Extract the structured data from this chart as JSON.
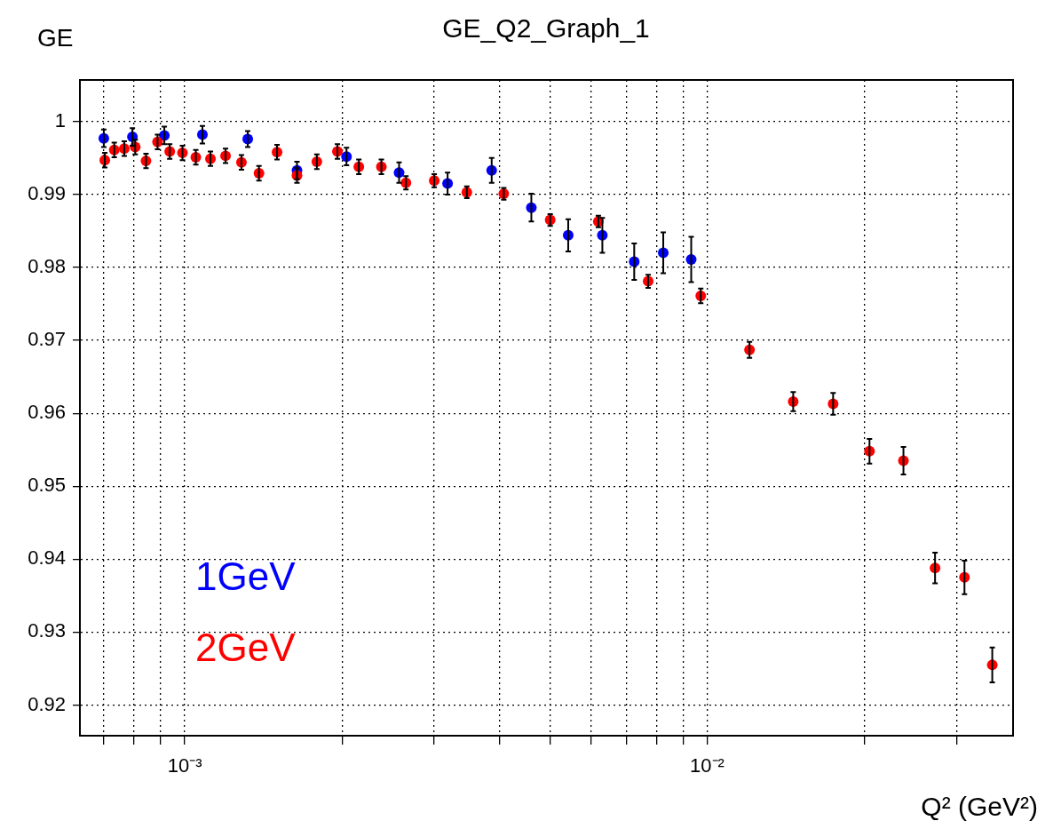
{
  "chart_data": {
    "type": "scatter",
    "title": "GE_Q2_Graph_1",
    "ylabel": "GE",
    "xlabel": "Q² (GeV²)",
    "log": "x",
    "grid": true,
    "legend": false,
    "marker": "circle",
    "xlim": [
      0.00063,
      0.0385
    ],
    "xticks": [
      {
        "value": 0.0007,
        "label": null
      },
      {
        "value": 0.0008,
        "label": null
      },
      {
        "value": 0.0009,
        "label": null
      },
      {
        "value": 0.001,
        "label": "10⁻³"
      },
      {
        "value": 0.002,
        "label": null
      },
      {
        "value": 0.003,
        "label": null
      },
      {
        "value": 0.004,
        "label": null
      },
      {
        "value": 0.005,
        "label": null
      },
      {
        "value": 0.006,
        "label": null
      },
      {
        "value": 0.007,
        "label": null
      },
      {
        "value": 0.008,
        "label": null
      },
      {
        "value": 0.009,
        "label": null
      },
      {
        "value": 0.01,
        "label": "10⁻²"
      },
      {
        "value": 0.02,
        "label": null
      },
      {
        "value": 0.03,
        "label": null
      }
    ],
    "ylim": [
      0.9158,
      1.0057
    ],
    "yticks": [
      0.92,
      0.93,
      0.94,
      0.95,
      0.96,
      0.97,
      0.98,
      0.99,
      1
    ],
    "series": [
      {
        "name": "1GeV",
        "color": "#0000ff",
        "x": [
          0.0007,
          0.000794,
          0.000914,
          0.001081,
          0.00132,
          0.00164,
          0.00204,
          0.002572,
          0.003185,
          0.003868,
          0.004607,
          0.00542,
          0.0063,
          0.00725,
          0.00824,
          0.00932
        ],
        "values": [
          0.9977,
          0.9979,
          0.9981,
          0.9982,
          0.9976,
          0.9933,
          0.9952,
          0.993,
          0.9915,
          0.9933,
          0.9882,
          0.9844,
          0.9844,
          0.9808,
          0.982,
          0.9811
        ],
        "errors": [
          0.0012,
          0.0012,
          0.0012,
          0.0012,
          0.0011,
          0.0012,
          0.0012,
          0.0014,
          0.0015,
          0.0017,
          0.0019,
          0.0022,
          0.0024,
          0.0025,
          0.0028,
          0.0031
        ]
      },
      {
        "name": "2GeV",
        "color": "#ff0000",
        "x": [
          0.000703,
          0.000733,
          0.000766,
          0.000804,
          0.000843,
          0.000887,
          0.000936,
          0.00099,
          0.00105,
          0.00112,
          0.001197,
          0.001284,
          0.001387,
          0.001502,
          0.00164,
          0.00179,
          0.00196,
          0.002154,
          0.002379,
          0.002651,
          0.003003,
          0.003467,
          0.00408,
          0.005006,
          0.00619,
          0.00771,
          0.00972,
          0.01205,
          0.01461,
          0.01742,
          0.02045,
          0.02375,
          0.0273,
          0.03108,
          0.03513
        ],
        "values": [
          0.9947,
          0.9961,
          0.9963,
          0.9965,
          0.9946,
          0.9972,
          0.9959,
          0.9957,
          0.9951,
          0.9949,
          0.9953,
          0.9944,
          0.9929,
          0.9958,
          0.9926,
          0.9945,
          0.9959,
          0.9938,
          0.9938,
          0.9916,
          0.9919,
          0.9903,
          0.9901,
          0.9865,
          0.9863,
          0.9781,
          0.9761,
          0.9687,
          0.9616,
          0.9613,
          0.9548,
          0.9535,
          0.9388,
          0.9375,
          0.9255
        ],
        "errors": [
          0.001,
          0.001,
          0.001,
          0.001,
          0.001,
          0.001,
          0.001,
          0.001,
          0.001,
          0.001,
          0.001,
          0.001,
          0.001,
          0.001,
          0.001,
          0.001,
          0.001,
          0.001,
          0.001,
          0.0009,
          0.0009,
          0.0008,
          0.0008,
          0.0008,
          0.0008,
          0.0009,
          0.001,
          0.0011,
          0.0013,
          0.0015,
          0.0017,
          0.0019,
          0.0021,
          0.0023,
          0.0024
        ]
      }
    ]
  }
}
